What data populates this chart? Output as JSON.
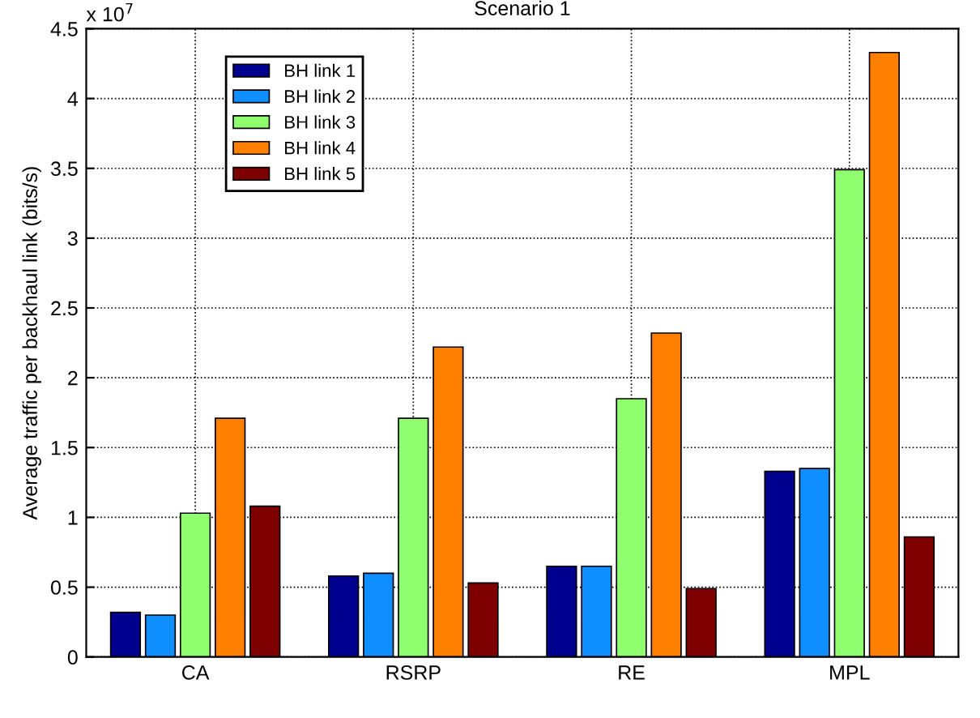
{
  "chart_data": {
    "type": "bar",
    "title": "Scenario 1",
    "ylabel": "Average traffic per backhaul link (bits/s)",
    "categories": [
      "CA",
      "RSRP",
      "RE",
      "MPL"
    ],
    "series": [
      {
        "name": "BH link 1",
        "color": "#00008f",
        "values": [
          0.32,
          0.58,
          0.65,
          1.33
        ]
      },
      {
        "name": "BH link 2",
        "color": "#0f8fff",
        "values": [
          0.3,
          0.6,
          0.65,
          1.35
        ]
      },
      {
        "name": "BH link 3",
        "color": "#8fff6f",
        "values": [
          1.03,
          1.71,
          1.85,
          3.49
        ]
      },
      {
        "name": "BH link 4",
        "color": "#ff7f00",
        "values": [
          1.71,
          2.22,
          2.32,
          4.33
        ]
      },
      {
        "name": "BH link 5",
        "color": "#7f0000",
        "values": [
          1.08,
          0.53,
          0.49,
          0.86
        ]
      }
    ],
    "ylim": [
      0,
      4.5
    ],
    "yticks": [
      0,
      0.5,
      1,
      1.5,
      2,
      2.5,
      3,
      3.5,
      4,
      4.5
    ],
    "annotations": [
      "x 10$^{7}$"
    ],
    "grid": true,
    "legend": "top left"
  }
}
